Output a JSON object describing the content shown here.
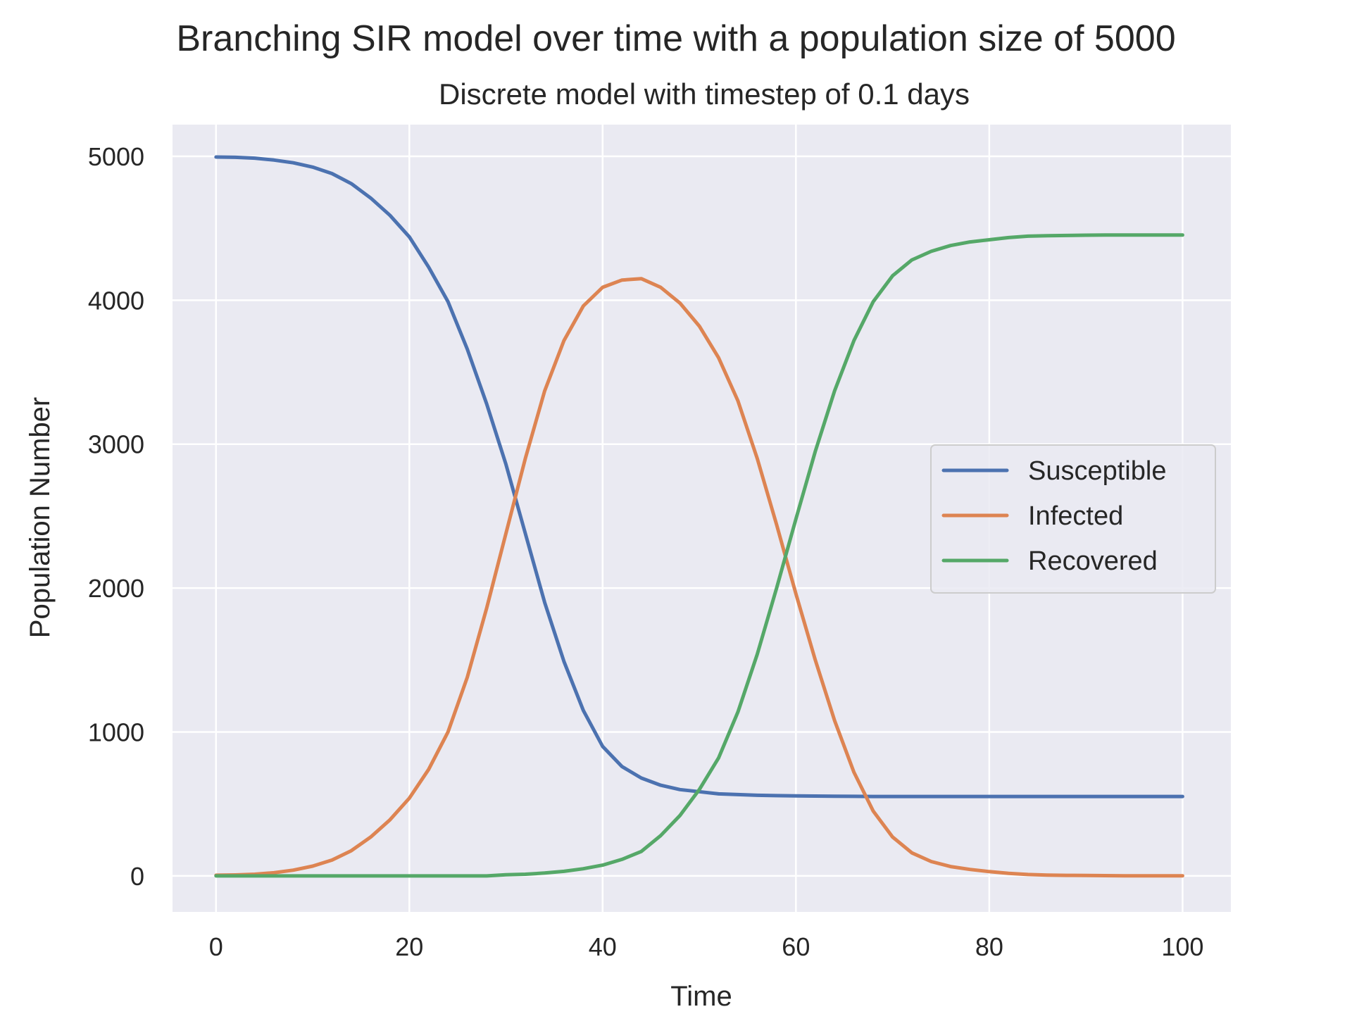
{
  "chart_data": {
    "type": "line",
    "title": "Branching SIR model over time with a population size of 5000",
    "subtitle": "Discrete model with timestep of 0.1 days",
    "xlabel": "Time",
    "ylabel": "Population Number",
    "xlim": [
      -4.5,
      105
    ],
    "ylim": [
      -250,
      5220
    ],
    "xticks": [
      "0",
      "20",
      "40",
      "60",
      "80",
      "100"
    ],
    "yticks": [
      "0",
      "1000",
      "2000",
      "3000",
      "4000",
      "5000"
    ],
    "grid": true,
    "legend_position": "center-right",
    "colors": {
      "background": "#EAEAF2",
      "grid": "#FFFFFF"
    },
    "x": [
      0,
      2,
      4,
      6,
      8,
      10,
      12,
      14,
      16,
      18,
      20,
      22,
      24,
      26,
      28,
      30,
      32,
      34,
      36,
      38,
      40,
      42,
      44,
      46,
      48,
      50,
      52,
      54,
      56,
      58,
      60,
      62,
      64,
      66,
      68,
      70,
      72,
      74,
      76,
      78,
      80,
      82,
      84,
      86,
      88,
      90,
      92,
      94,
      96,
      98,
      100
    ],
    "series": [
      {
        "name": "Susceptible",
        "color": "#4C72B0",
        "values": [
          4995,
          4993,
          4987,
          4974,
          4955,
          4925,
          4880,
          4810,
          4710,
          4590,
          4440,
          4230,
          3990,
          3660,
          3280,
          2860,
          2380,
          1900,
          1490,
          1150,
          900,
          760,
          680,
          630,
          600,
          585,
          570,
          565,
          560,
          558,
          556,
          555,
          554,
          553,
          552,
          552,
          552,
          552,
          552,
          552,
          552,
          552,
          552,
          552,
          552,
          552,
          552,
          552,
          552,
          552,
          552
        ]
      },
      {
        "name": "Infected",
        "color": "#DD8452",
        "values": [
          5,
          7,
          12,
          22,
          40,
          68,
          110,
          175,
          270,
          390,
          540,
          740,
          1000,
          1380,
          1860,
          2380,
          2900,
          3370,
          3720,
          3960,
          4090,
          4140,
          4150,
          4090,
          3980,
          3820,
          3600,
          3300,
          2900,
          2440,
          1960,
          1500,
          1080,
          720,
          450,
          270,
          160,
          100,
          65,
          45,
          30,
          18,
          10,
          6,
          4,
          3,
          2,
          1,
          1,
          1,
          1
        ]
      },
      {
        "name": "Recovered",
        "color": "#55A868",
        "values": [
          0,
          0,
          0,
          0,
          0,
          0,
          0,
          0,
          0,
          0,
          0,
          0,
          0,
          0,
          0,
          8,
          12,
          20,
          32,
          50,
          75,
          115,
          170,
          280,
          420,
          600,
          820,
          1140,
          1540,
          2000,
          2480,
          2950,
          3370,
          3720,
          3990,
          4170,
          4280,
          4340,
          4380,
          4405,
          4420,
          4435,
          4445,
          4448,
          4450,
          4452,
          4453,
          4453,
          4453,
          4453,
          4453
        ]
      }
    ]
  }
}
